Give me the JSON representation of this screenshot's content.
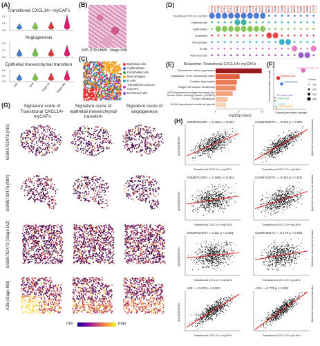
{
  "panelA": {
    "label": "(A)",
    "titles": [
      "Transitional CXCL14+ myCAFs",
      "Angiogenesis",
      "Epithelial mesenchymal transition"
    ],
    "groups": [
      "AIS",
      "MIA",
      "Stage IA",
      "Stage IIIB"
    ],
    "colors": [
      "#3c7fc9",
      "#7cc04a",
      "#d93a3a",
      "#e01a6b"
    ]
  },
  "panelB": {
    "label": "(B)",
    "caption": "A35 (T3N2bM0, Stage IIIB)"
  },
  "panelC": {
    "label": "(C)",
    "legend": [
      {
        "name": "Epithelial cells",
        "color": "#e53030"
      },
      {
        "name": "myfibroblasts",
        "color": "#3a6ecf"
      },
      {
        "name": "Endothelial cells",
        "color": "#3aa44c"
      },
      {
        "name": "Macrophages",
        "color": "#f1a01c"
      },
      {
        "name": "B cells",
        "color": "#29a7c9"
      },
      {
        "name": "Transitional CXCL14+ myCAFs",
        "color": "#d4409b"
      },
      {
        "name": "Red blood cells",
        "color": "#8e4cbf"
      }
    ]
  },
  "panelD": {
    "label": "(D)",
    "genes": [
      "CXCL14",
      "THBS1",
      "COL1A1",
      "COL1A2",
      "MMP11",
      "CFD",
      "SPARC",
      "COL3A1",
      "MYH11",
      "PECAM1",
      "VWF",
      "CD68",
      "LYZ",
      "MS4A1",
      "HBB",
      "HBA1",
      "CD79A"
    ],
    "rows": [
      "Transitional CXCL14+ myCAFs",
      "Epithelial cells",
      "myfibroblasts",
      "Endothelial",
      "Macrophages",
      "B cells",
      "Red blood cells"
    ],
    "row_colors": [
      "#3a6ecf",
      "#2aa8a0",
      "#7cc04a",
      "#e53030",
      "#29a7c9",
      "#e86fc0",
      "#8e4cbf"
    ]
  },
  "panelE": {
    "label": "(E)",
    "title": "Reactome: Transitional CXCL14+ myCAFs",
    "xlabel": "-log10(p.value)",
    "terms": [
      {
        "name": "Extracellular matrix organization",
        "value": 10
      },
      {
        "name": "Degradation of the extracellular matrix",
        "value": 5.2
      },
      {
        "name": "Collagen degradation",
        "value": 4.6
      },
      {
        "name": "Integrin cell surface interactions",
        "value": 4.4
      },
      {
        "name": "Regulation of Insulin-like Growth Factor (IGF) transport and uptake by Insulin-like Growth Factor Binding Proteins (IGFBPs)",
        "value": 3.7
      },
      {
        "name": "NCAM1 interactions",
        "value": 2.6
      },
      {
        "name": "NCAM signaling for neurite out-growth",
        "value": 2.2
      }
    ],
    "ticks": [
      "0",
      "5",
      "10"
    ],
    "bar_colors": [
      "#9e1b1b",
      "#e0603e",
      "#ea7a55",
      "#ee8c66",
      "#f3a37f",
      "#f7c1a6",
      "#f9d2bc"
    ]
  },
  "panelF": {
    "label": "(F)",
    "xlabel": "Outgoing interaction strength",
    "ylabel": "Incoming interaction strength",
    "legend_title": "Count",
    "legend_counts": [
      "100",
      "200",
      "300",
      "400"
    ],
    "points": [
      {
        "name": "Transitional CXCL14+ myCAFs",
        "x": 2.6,
        "y": 1.0,
        "color": "#e86fc0",
        "size": 6
      },
      {
        "name": "Epithelial cells",
        "x": 0.4,
        "y": 0.8,
        "color": "#e53030",
        "size": 5
      },
      {
        "name": "myfibroblasts",
        "x": 0.7,
        "y": 0.65,
        "color": "#3a6ecf",
        "size": 4
      },
      {
        "name": "Red blood cells",
        "x": 0.1,
        "y": 0.3,
        "color": "#8e4cbf",
        "size": 2
      },
      {
        "name": "Endothelial",
        "x": 0.15,
        "y": 0.22,
        "color": "#3aa44c",
        "size": 2
      },
      {
        "name": "B cells",
        "x": 0.2,
        "y": 0.08,
        "color": "#29a7c9",
        "size": 2
      },
      {
        "name": "Macrophages",
        "x": 0.25,
        "y": 0.03,
        "color": "#f1a01c",
        "size": 2
      }
    ]
  },
  "panelG": {
    "label": "(G)",
    "col_titles": [
      "Signature score of Transitional CXCL14+ myCAFs",
      "Signature score of epithelial mesenchymal transition",
      "Signature score of angiogenesis"
    ],
    "row_labels": [
      "GSM5702478 (AIS)",
      "GSM5702475 (MIA)",
      "GSM5702473 (Stage IA2)",
      "A35 (Stage IIIB)"
    ],
    "colorbar_min": "min",
    "colorbar_max": "max"
  },
  "panelH": {
    "label": "(H)",
    "plots": [
      {
        "title": "GSM5702478 r = 0.462 p < 0.001",
        "ylabel": "ANGIOGENESIS",
        "xlabel": "Transitional CXCL14+ myCAFs"
      },
      {
        "title": "GSM5702478 r = 0.628 p < 0.001",
        "ylabel": "Epithelial mesenchymal transition",
        "xlabel": "Transitional CXCL14+ myCAFs"
      },
      {
        "title": "GSM5702475 r = 0.168 p < 0.001",
        "ylabel": "ANGIOGENESIS",
        "xlabel": "Transitional CXCL14+ myCAFs"
      },
      {
        "title": "GSM5702475 r = 0.354 p < 0.001",
        "ylabel": "Epithelial mesenchymal transition",
        "xlabel": "Transitional CXCL14+ myCAFs"
      },
      {
        "title": "GSM5702473 r = 0.111 p < 0.001",
        "ylabel": "ANGIOGENESIS",
        "xlabel": "Transitional CXCL14+ myCAFs"
      },
      {
        "title": "GSM5702473 r = 0.179 p < 0.001",
        "ylabel": "Epithelial mesenchymal transition",
        "xlabel": "Transitional CXCL14+ myCAFs"
      },
      {
        "title": "A35 r = 0.678 p < 0.001",
        "ylabel": "ANGIOGENESIS",
        "xlabel": "Transitional CXCL14+ myCAFs"
      },
      {
        "title": "A35 r = 0.775 p < 0.001",
        "ylabel": "Epithelial mesenchymal transition",
        "xlabel": "Transitional CXCL14+ myCAFs"
      }
    ]
  }
}
